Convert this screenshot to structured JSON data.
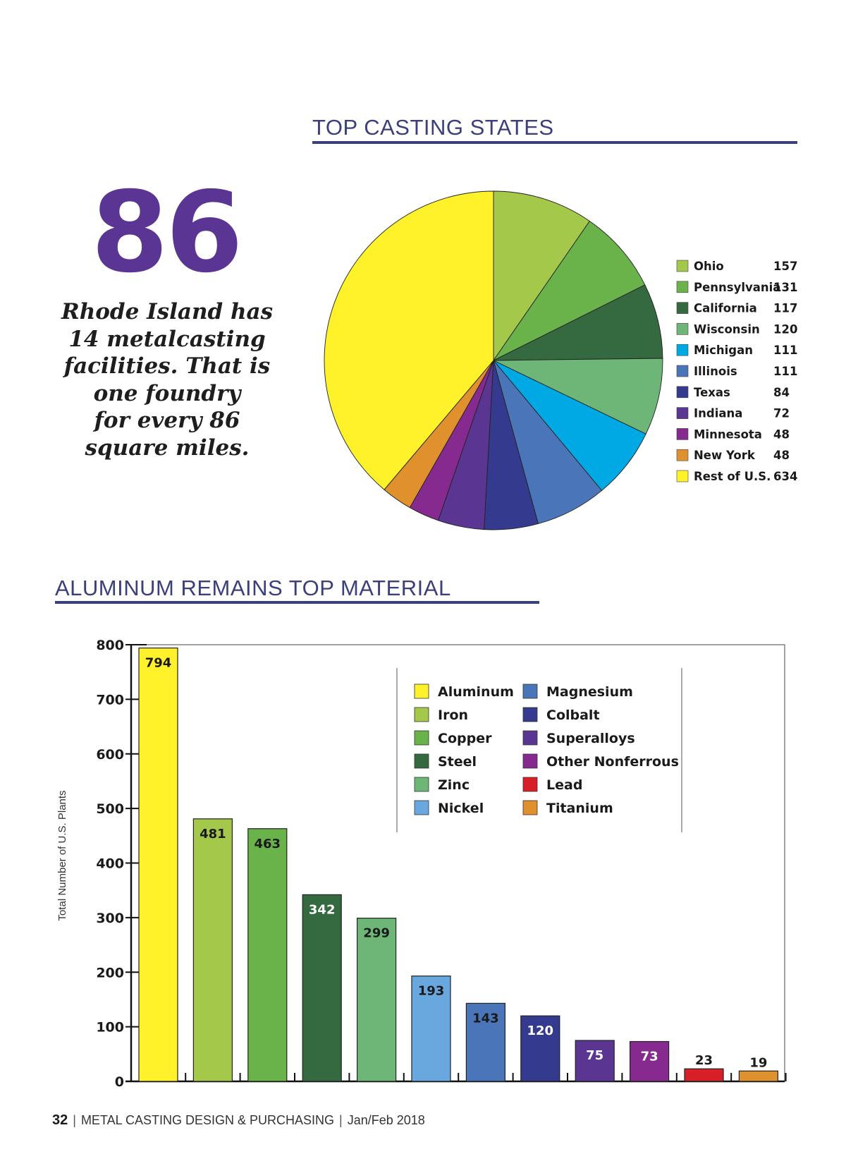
{
  "big_stat": {
    "number": "86",
    "text": "Rhode Island has 14 metalcasting facilities. That is one foundry for every 86 square miles.",
    "lines": [
      "Rhode Island has",
      "14 metalcasting",
      "facilities. That is",
      "one foundry",
      "for every 86",
      "square miles."
    ]
  },
  "footer": {
    "page_number": "32",
    "publication": "METAL CASTING DESIGN & PURCHASING",
    "issue": "Jan/Feb 2018"
  },
  "chart_data": [
    {
      "type": "pie",
      "title": "TOP CASTING STATES",
      "legend_position": "right",
      "slices": [
        {
          "label": "Ohio",
          "value": 157,
          "color": "#a3c84a"
        },
        {
          "label": "Pennsylvania",
          "value": 131,
          "color": "#6ab24a"
        },
        {
          "label": "California",
          "value": 117,
          "color": "#356a41"
        },
        {
          "label": "Wisconsin",
          "value": 120,
          "color": "#6db677"
        },
        {
          "label": "Michigan",
          "value": 111,
          "color": "#00a8e4"
        },
        {
          "label": "Illinois",
          "value": 111,
          "color": "#4a75b9"
        },
        {
          "label": "Texas",
          "value": 84,
          "color": "#343a8e"
        },
        {
          "label": "Indiana",
          "value": 72,
          "color": "#5a3592"
        },
        {
          "label": "Minnesota",
          "value": 48,
          "color": "#862a8f"
        },
        {
          "label": "New York",
          "value": 48,
          "color": "#e0902c"
        },
        {
          "label": "Rest of U.S.",
          "value": 634,
          "color": "#fff12a"
        }
      ]
    },
    {
      "type": "bar",
      "title": "ALUMINUM REMAINS TOP MATERIAL",
      "xlabel": "",
      "ylabel": "Total Number of U.S. Plants",
      "ylim": [
        0,
        800
      ],
      "yticks": [
        0,
        100,
        200,
        300,
        400,
        500,
        600,
        700,
        800
      ],
      "grid": false,
      "legend_position": "top-right",
      "categories": [
        "Aluminum",
        "Iron",
        "Copper",
        "Steel",
        "Zinc",
        "Nickel",
        "Magnesium",
        "Colbalt",
        "Superalloys",
        "Other Nonferrous",
        "Lead",
        "Titanium"
      ],
      "values": [
        794,
        481,
        463,
        342,
        299,
        193,
        143,
        120,
        75,
        73,
        23,
        19
      ],
      "colors": [
        "#fff12a",
        "#a3c84a",
        "#6ab24a",
        "#356a41",
        "#6db677",
        "#68a8de",
        "#4a75b9",
        "#343a8e",
        "#5a3592",
        "#862a8f",
        "#d71f27",
        "#e0902c"
      ],
      "label_colors": [
        "#1a1a1a",
        "#1a1a1a",
        "#1a1a1a",
        "#ffffff",
        "#1a1a1a",
        "#1a1a1a",
        "#1a1a1a",
        "#ffffff",
        "#ffffff",
        "#ffffff",
        "#1a1a1a",
        "#1a1a1a"
      ]
    }
  ]
}
